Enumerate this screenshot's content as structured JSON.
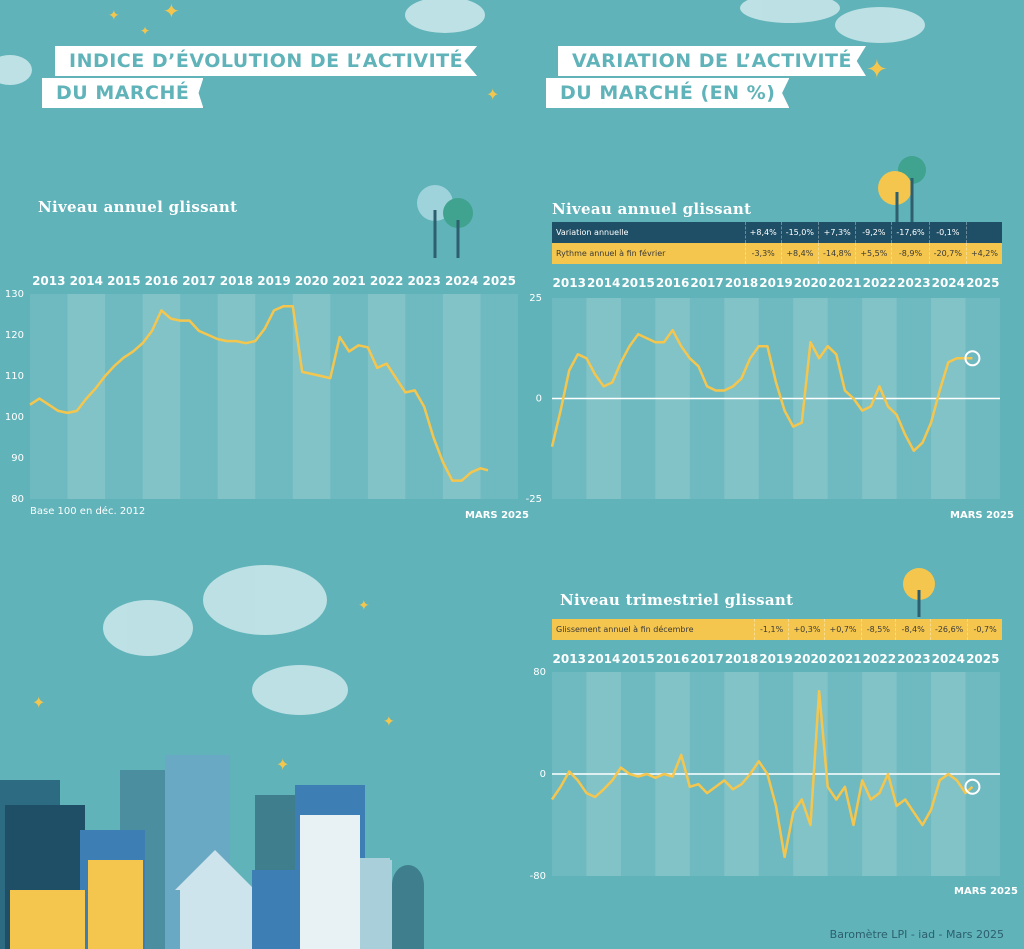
{
  "panels": {
    "left_banner_line1": "INDICE D’ÉVOLUTION DE L’ACTIVITÉ",
    "left_banner_line2": "DU MARCHÉ",
    "right_banner_line1": "VARIATION DE L’ACTIVITÉ",
    "right_banner_line2": "DU MARCHÉ (EN %)",
    "left_section": "Niveau annuel glissant",
    "right_top_section": "Niveau annuel glissant",
    "right_bottom_section": "Niveau trimestriel glissant",
    "base_note": "Base 100 en déc. 2012",
    "date_left": "MARS 2025",
    "date_right_top": "MARS 2025",
    "date_right_bottom": "MARS 2025",
    "source": "Baromètre LPI - iad - Mars 2025"
  },
  "table_top": {
    "rows": [
      {
        "label": "Variation annuelle",
        "style": "navy",
        "values": [
          "+8,4%",
          "-15,0%",
          "+7,3%",
          "-9,2%",
          "-17,6%",
          "-0,1%",
          ""
        ]
      },
      {
        "label": "Rythme annuel à fin février",
        "style": "yellow",
        "values": [
          "-3,3%",
          "+8,4%",
          "-14,8%",
          "+5,5%",
          "-8,9%",
          "-20,7%",
          "+4,2%"
        ]
      }
    ]
  },
  "table_bottom": {
    "rows": [
      {
        "label": "Glissement annuel à fin décembre",
        "style": "yellow",
        "values": [
          "-1,1%",
          "+0,3%",
          "+0,7%",
          "-8,5%",
          "-8,4%",
          "-26,6%",
          "-0,7%"
        ]
      }
    ]
  },
  "colors": {
    "line": "#f5c64d",
    "band": "rgba(255,255,255,0.22)",
    "bg": "#5fb3b9",
    "navy": "#1f4f66"
  },
  "chart_data": [
    {
      "type": "line",
      "title": "Niveau annuel glissant",
      "categories": [
        "2013",
        "2014",
        "2015",
        "2016",
        "2017",
        "2018",
        "2019",
        "2020",
        "2021",
        "2022",
        "2023",
        "2024",
        "2025"
      ],
      "ylim": [
        80,
        130
      ],
      "yticks": [
        80,
        90,
        100,
        110,
        120,
        130
      ],
      "x": [
        2013.0,
        2013.25,
        2013.5,
        2013.75,
        2014.0,
        2014.25,
        2014.5,
        2014.75,
        2015.0,
        2015.25,
        2015.5,
        2015.75,
        2016.0,
        2016.25,
        2016.5,
        2016.75,
        2017.0,
        2017.25,
        2017.5,
        2017.75,
        2018.0,
        2018.25,
        2018.5,
        2018.75,
        2019.0,
        2019.25,
        2019.5,
        2019.75,
        2020.0,
        2020.25,
        2020.5,
        2020.75,
        2021.0,
        2021.25,
        2021.5,
        2021.75,
        2022.0,
        2022.25,
        2022.5,
        2022.75,
        2023.0,
        2023.25,
        2023.5,
        2023.75,
        2024.0,
        2024.25,
        2024.5,
        2024.75,
        2025.0,
        2025.2
      ],
      "series": [
        {
          "values": [
            103,
            104.5,
            103,
            101.5,
            101,
            101.5,
            104.5,
            107,
            110,
            112.5,
            114.5,
            116,
            118,
            121,
            126,
            124,
            123.5,
            123.5,
            121,
            120,
            119,
            118.5,
            118.5,
            118,
            118.5,
            121.5,
            126,
            127,
            127,
            111,
            110.5,
            110,
            109.5,
            119.5,
            116,
            117.5,
            117,
            112,
            113,
            109.5,
            106,
            106.5,
            102.5,
            95,
            89,
            84.5,
            84.5,
            86.5,
            87.5,
            87
          ]
        }
      ]
    },
    {
      "type": "line",
      "title": "Niveau annuel glissant",
      "categories": [
        "2013",
        "2014",
        "2015",
        "2016",
        "2017",
        "2018",
        "2019",
        "2020",
        "2021",
        "2022",
        "2023",
        "2024",
        "2025"
      ],
      "ylim": [
        -25,
        25
      ],
      "yticks": [
        -25,
        0,
        25
      ],
      "x": [
        2013.0,
        2013.25,
        2013.5,
        2013.75,
        2014.0,
        2014.25,
        2014.5,
        2014.75,
        2015.0,
        2015.25,
        2015.5,
        2015.75,
        2016.0,
        2016.25,
        2016.5,
        2016.75,
        2017.0,
        2017.25,
        2017.5,
        2017.75,
        2018.0,
        2018.25,
        2018.5,
        2018.75,
        2019.0,
        2019.25,
        2019.5,
        2019.75,
        2020.0,
        2020.25,
        2020.5,
        2020.75,
        2021.0,
        2021.25,
        2021.5,
        2021.75,
        2022.0,
        2022.25,
        2022.5,
        2022.75,
        2023.0,
        2023.25,
        2023.5,
        2023.75,
        2024.0,
        2024.25,
        2024.5,
        2024.75,
        2025.0,
        2025.2
      ],
      "series": [
        {
          "values": [
            -12,
            -3,
            7,
            11,
            10,
            6,
            3,
            4,
            9,
            13,
            16,
            15,
            14,
            14,
            17,
            13,
            10,
            8,
            3,
            2,
            2,
            3,
            5,
            10,
            13,
            13,
            4,
            -3,
            -7,
            -6,
            14,
            10,
            13,
            11,
            2,
            0,
            -3,
            -2,
            3,
            -2,
            -4,
            -9,
            -13,
            -11,
            -6,
            2,
            9,
            10,
            10,
            10
          ]
        }
      ],
      "marker_end": true
    },
    {
      "type": "line",
      "title": "Niveau trimestriel glissant",
      "categories": [
        "2013",
        "2014",
        "2015",
        "2016",
        "2017",
        "2018",
        "2019",
        "2020",
        "2021",
        "2022",
        "2023",
        "2024",
        "2025"
      ],
      "ylim": [
        -80,
        80
      ],
      "yticks": [
        -80,
        0,
        80
      ],
      "x": [
        2013.0,
        2013.25,
        2013.5,
        2013.75,
        2014.0,
        2014.25,
        2014.5,
        2014.75,
        2015.0,
        2015.25,
        2015.5,
        2015.75,
        2016.0,
        2016.25,
        2016.5,
        2016.75,
        2017.0,
        2017.25,
        2017.5,
        2017.75,
        2018.0,
        2018.25,
        2018.5,
        2018.75,
        2019.0,
        2019.25,
        2019.5,
        2019.75,
        2020.0,
        2020.25,
        2020.5,
        2020.75,
        2021.0,
        2021.25,
        2021.5,
        2021.75,
        2022.0,
        2022.25,
        2022.5,
        2022.75,
        2023.0,
        2023.25,
        2023.5,
        2023.75,
        2024.0,
        2024.25,
        2024.5,
        2024.75,
        2025.0,
        2025.2
      ],
      "series": [
        {
          "values": [
            -20,
            -10,
            2,
            -5,
            -15,
            -18,
            -12,
            -5,
            5,
            0,
            -2,
            0,
            -3,
            0,
            -2,
            15,
            -10,
            -8,
            -15,
            -10,
            -5,
            -12,
            -8,
            0,
            10,
            0,
            -25,
            -65,
            -30,
            -20,
            -40,
            65,
            -10,
            -20,
            -10,
            -40,
            -5,
            -20,
            -15,
            0,
            -25,
            -20,
            -30,
            -40,
            -28,
            -5,
            0,
            -5,
            -15,
            -10
          ]
        }
      ],
      "marker_end": true
    }
  ]
}
